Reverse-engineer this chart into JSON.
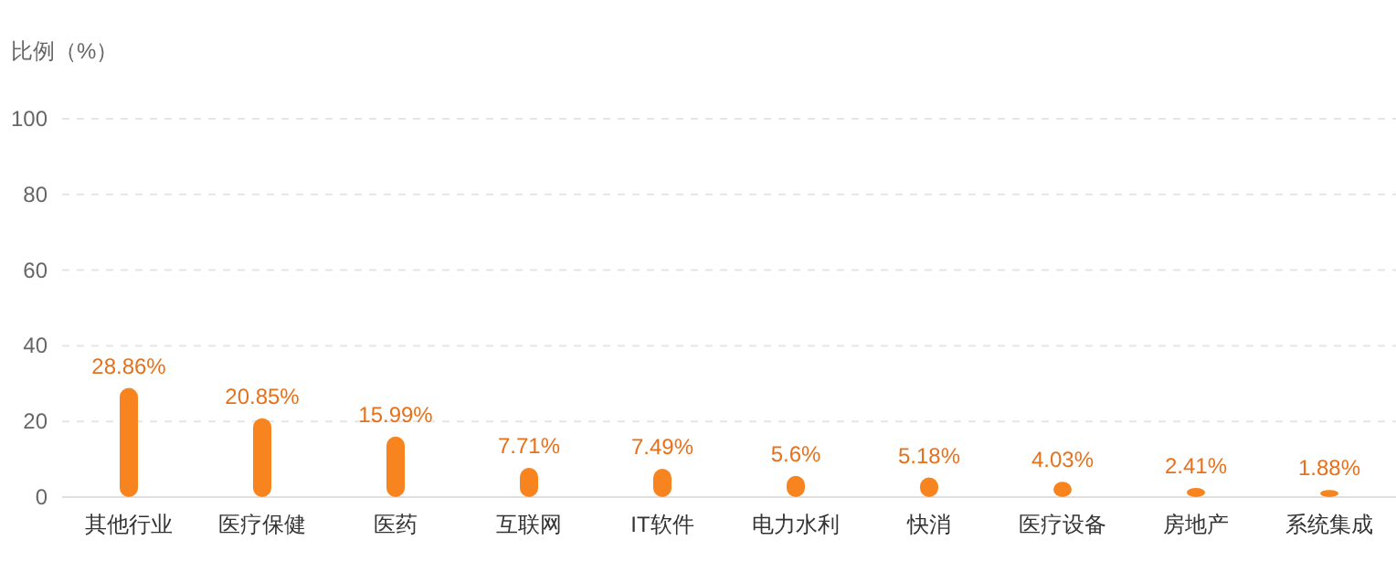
{
  "chart_data": {
    "type": "bar",
    "ylabel": "比例（%）",
    "categories": [
      "其他行业",
      "医疗保健",
      "医药",
      "互联网",
      "IT软件",
      "电力水利",
      "快消",
      "医疗设备",
      "房地产",
      "系统集成"
    ],
    "values": [
      28.86,
      20.85,
      15.99,
      7.71,
      7.49,
      5.6,
      5.18,
      4.03,
      2.41,
      1.88
    ],
    "color": "#f7841e",
    "value_labels": [
      "28.86%",
      "20.85%",
      "15.99%",
      "7.71%",
      "7.49%",
      "5.6%",
      "5.18%",
      "4.03%",
      "2.41%",
      "1.88%"
    ],
    "ylim": [
      0,
      100
    ],
    "yticks": [
      0,
      20,
      40,
      60,
      80,
      100
    ],
    "grid": "y"
  }
}
